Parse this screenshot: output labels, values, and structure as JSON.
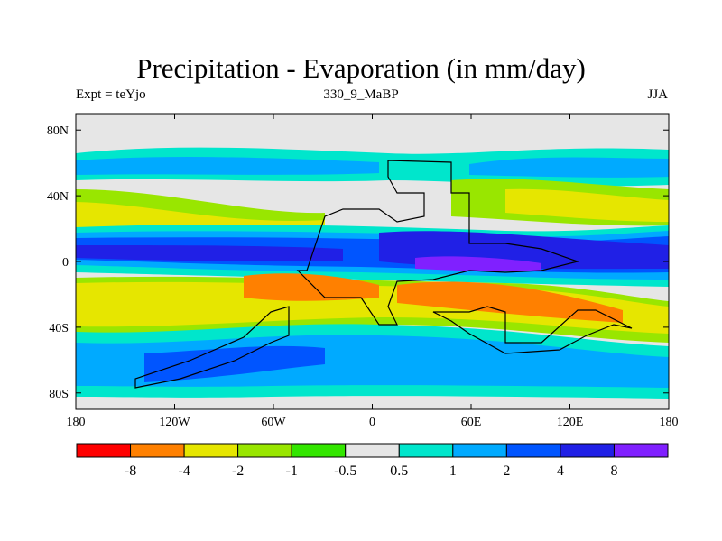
{
  "header": {
    "title": "Precipitation - Evaporation (in mm/day)",
    "experiment": "Expt = teYjo",
    "period": "330_9_MaBP",
    "season": "JJA"
  },
  "map": {
    "projection": "cylindrical-equidistant",
    "lon_range": [
      -180,
      180
    ],
    "lat_range": [
      -90,
      90
    ],
    "x_ticks": [
      {
        "lon": -180,
        "label": "180"
      },
      {
        "lon": -120,
        "label": "120W"
      },
      {
        "lon": -60,
        "label": "60W"
      },
      {
        "lon": 0,
        "label": "0"
      },
      {
        "lon": 60,
        "label": "60E"
      },
      {
        "lon": 120,
        "label": "120E"
      },
      {
        "lon": 180,
        "label": "180"
      }
    ],
    "y_ticks": [
      {
        "lat": 80,
        "label": "80N"
      },
      {
        "lat": 40,
        "label": "40N"
      },
      {
        "lat": 0,
        "label": "0"
      },
      {
        "lat": -40,
        "label": "40S"
      },
      {
        "lat": -80,
        "label": "80S"
      }
    ]
  },
  "colorbar": {
    "colors": [
      "#ff0000",
      "#ff8000",
      "#e6e600",
      "#99e600",
      "#33e600",
      "#e6e6e6",
      "#00e6cc",
      "#00aaff",
      "#0055ff",
      "#2020e6",
      "#8020ff"
    ],
    "labels": [
      "-8",
      "-4",
      "-2",
      "-1",
      "-0.5",
      "0.5",
      "1",
      "2",
      "4",
      "8"
    ]
  }
}
